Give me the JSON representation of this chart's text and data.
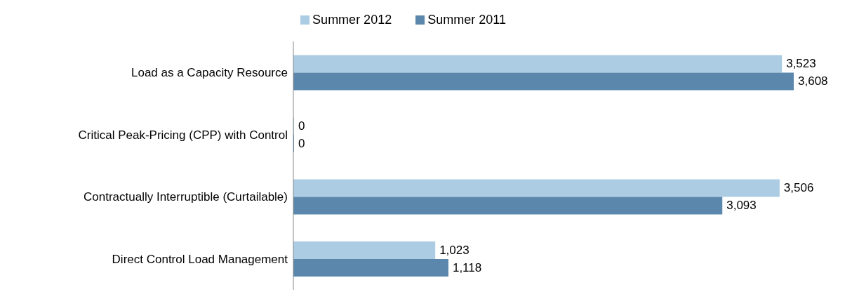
{
  "chart_data": {
    "type": "bar",
    "orientation": "horizontal",
    "categories": [
      "Load as a Capacity Resource",
      "Critical Peak-Pricing (CPP) with Control",
      "Contractually Interruptible (Curtailable)",
      "Direct Control Load Management"
    ],
    "series": [
      {
        "name": "Summer 2012",
        "color": "#abcce3",
        "values": [
          3523,
          0,
          3506,
          1023
        ],
        "value_labels": [
          "3,523",
          "0",
          "3,506",
          "1,023"
        ]
      },
      {
        "name": "Summer 2011",
        "color": "#5b87ad",
        "values": [
          3608,
          0,
          3093,
          1118
        ],
        "value_labels": [
          "3,608",
          "0",
          "3,093",
          "1,118"
        ]
      }
    ],
    "data_labels": true,
    "legend": "top",
    "grid": false,
    "tick_labels": "y"
  }
}
